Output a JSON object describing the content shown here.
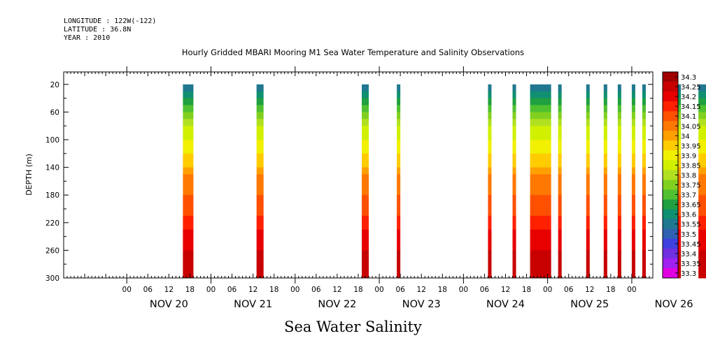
{
  "header": {
    "longitude": "LONGITUDE : 122W(-122)",
    "latitude": "LATITUDE : 36.8N",
    "year": "YEAR : 2010"
  },
  "chart_data": {
    "type": "heatmap",
    "title": "Hourly Gridded MBARI Mooring M1 Sea Water Temperature and Salinity Observations",
    "xlabel": "Sea Water Salinity",
    "ylabel": "DEPTH (m)",
    "x_range_hours": [
      -18,
      150
    ],
    "x_hour_ticks": [
      "00",
      "06",
      "12",
      "18"
    ],
    "x_day_labels": [
      "NOV 20",
      "NOV 21",
      "NOV 22",
      "NOV 23",
      "NOV 24",
      "NOV 25",
      "NOV 26"
    ],
    "y_range": [
      300,
      2
    ],
    "y_ticks": [
      20,
      60,
      100,
      140,
      180,
      220,
      260,
      300
    ],
    "colorbar": {
      "levels": [
        "34.3",
        "34.25",
        "34.2",
        "34.15",
        "34.1",
        "34.05",
        "34",
        "33.95",
        "33.9",
        "33.85",
        "33.8",
        "33.75",
        "33.7",
        "33.65",
        "33.6",
        "33.55",
        "33.5",
        "33.45",
        "33.4",
        "33.35",
        "33.3"
      ],
      "colors": [
        "#a00000",
        "#c80000",
        "#e80000",
        "#ff2000",
        "#ff5000",
        "#ff7800",
        "#ffa000",
        "#ffcc00",
        "#f0f000",
        "#d0f000",
        "#b0e020",
        "#80d020",
        "#50c030",
        "#20a040",
        "#109070",
        "#207890",
        "#3060b0",
        "#4040e0",
        "#7030e0",
        "#a020f0",
        "#e000e0"
      ]
    },
    "depth_profile": [
      {
        "depth": 20,
        "salinity": 33.5
      },
      {
        "depth": 40,
        "salinity": 33.62
      },
      {
        "depth": 60,
        "salinity": 33.72
      },
      {
        "depth": 80,
        "salinity": 33.8
      },
      {
        "depth": 100,
        "salinity": 33.85
      },
      {
        "depth": 120,
        "salinity": 33.9
      },
      {
        "depth": 140,
        "salinity": 33.95
      },
      {
        "depth": 160,
        "salinity": 34.02
      },
      {
        "depth": 180,
        "salinity": 34.05
      },
      {
        "depth": 200,
        "salinity": 34.08
      },
      {
        "depth": 220,
        "salinity": 34.12
      },
      {
        "depth": 240,
        "salinity": 34.16
      },
      {
        "depth": 260,
        "salinity": 34.2
      },
      {
        "depth": 280,
        "salinity": 34.22
      },
      {
        "depth": 300,
        "salinity": 34.25
      }
    ],
    "observation_columns": [
      {
        "start_hour": 16,
        "end_hour": 19
      },
      {
        "start_hour": 37,
        "end_hour": 39
      },
      {
        "start_hour": 67,
        "end_hour": 69
      },
      {
        "start_hour": 77,
        "end_hour": 78
      },
      {
        "start_hour": 103,
        "end_hour": 104
      },
      {
        "start_hour": 110,
        "end_hour": 111
      },
      {
        "start_hour": 115,
        "end_hour": 121
      },
      {
        "start_hour": 123,
        "end_hour": 124
      },
      {
        "start_hour": 131,
        "end_hour": 132
      },
      {
        "start_hour": 136,
        "end_hour": 137
      },
      {
        "start_hour": 140,
        "end_hour": 141
      },
      {
        "start_hour": 144,
        "end_hour": 145
      },
      {
        "start_hour": 147,
        "end_hour": 148
      },
      {
        "start_hour": 156,
        "end_hour": 158
      },
      {
        "start_hour": 163,
        "end_hour": 168
      }
    ]
  }
}
